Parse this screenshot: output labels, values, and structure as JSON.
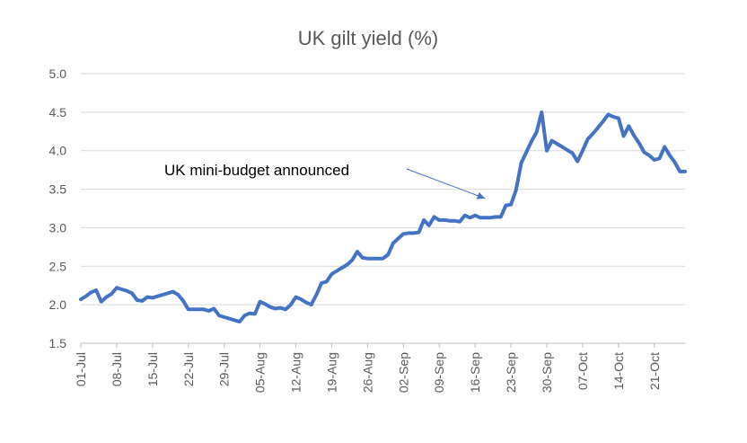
{
  "chart_data": {
    "type": "line",
    "title": "UK gilt yield (%)",
    "xlabel": "",
    "ylabel": "",
    "ylim": [
      1.5,
      5.0
    ],
    "yticks": [
      "1.5",
      "2.0",
      "2.5",
      "3.0",
      "3.5",
      "4.0",
      "4.5",
      "5.0"
    ],
    "grid": "horizontal",
    "x_tick_labels": [
      "01-Jul",
      "08-Jul",
      "15-Jul",
      "22-Jul",
      "29-Jul",
      "05-Aug",
      "12-Aug",
      "19-Aug",
      "26-Aug",
      "02-Sep",
      "09-Sep",
      "16-Sep",
      "23-Sep",
      "30-Sep",
      "07-Oct",
      "14-Oct",
      "21-Oct"
    ],
    "x_range_days": [
      0,
      118
    ],
    "series": [
      {
        "name": "UK gilt yield",
        "color": "#4472C4",
        "x_days": [
          0,
          1,
          2,
          3,
          4,
          5,
          6,
          7,
          8,
          9,
          10,
          11,
          12,
          13,
          14,
          15,
          16,
          17,
          18,
          19,
          20,
          21,
          22,
          23,
          24,
          25,
          26,
          27,
          28,
          29,
          30,
          31,
          32,
          33,
          34,
          35,
          36,
          37,
          38,
          39,
          40,
          41,
          42,
          43,
          44,
          45,
          46,
          47,
          48,
          49,
          50,
          51,
          52,
          53,
          54,
          55,
          56,
          57,
          58,
          59,
          60,
          61,
          62,
          63,
          64,
          65,
          66,
          67,
          68,
          69,
          70,
          71,
          72,
          73,
          74,
          75,
          76,
          77,
          78,
          79,
          80,
          81,
          82,
          83,
          84,
          85,
          86,
          87,
          88,
          89,
          90,
          91,
          92,
          93,
          94,
          95,
          96,
          97,
          98,
          99,
          100,
          101,
          102,
          103,
          104,
          105,
          106,
          107,
          108,
          109,
          110,
          111,
          112,
          113,
          114,
          115,
          116,
          117,
          118
        ],
        "values": [
          2.07,
          2.11,
          2.16,
          2.19,
          2.04,
          2.1,
          2.14,
          2.22,
          2.2,
          2.18,
          2.15,
          2.06,
          2.05,
          2.1,
          2.09,
          2.11,
          2.13,
          2.15,
          2.17,
          2.13,
          2.05,
          1.94,
          1.94,
          1.94,
          1.94,
          1.92,
          1.95,
          1.86,
          1.84,
          1.82,
          1.8,
          1.78,
          1.86,
          1.89,
          1.88,
          2.04,
          2.01,
          1.97,
          1.95,
          1.96,
          1.94,
          2.0,
          2.1,
          2.07,
          2.03,
          2.0,
          2.13,
          2.28,
          2.3,
          2.4,
          2.44,
          2.48,
          2.52,
          2.58,
          2.69,
          2.61,
          2.6,
          2.6,
          2.6,
          2.6,
          2.65,
          2.8,
          2.86,
          2.92,
          2.93,
          2.93,
          2.94,
          3.1,
          3.03,
          3.14,
          3.1,
          3.1,
          3.09,
          3.09,
          3.08,
          3.16,
          3.13,
          3.16,
          3.13,
          3.13,
          3.13,
          3.14,
          3.14,
          3.29,
          3.3,
          3.49,
          3.84,
          3.98,
          4.12,
          4.24,
          4.5,
          4.0,
          4.13,
          4.09,
          4.05,
          4.01,
          3.97,
          3.86,
          4.0,
          4.15,
          4.22,
          4.3,
          4.38,
          4.47,
          4.44,
          4.42,
          4.19,
          4.32,
          4.2,
          4.1,
          3.98,
          3.94,
          3.88,
          3.9,
          4.05,
          3.94,
          3.85,
          3.73,
          3.73
        ]
      }
    ],
    "annotations": [
      {
        "text": "UK mini-budget announced",
        "points_to_day": 79,
        "points_to_value": 3.38
      }
    ]
  }
}
